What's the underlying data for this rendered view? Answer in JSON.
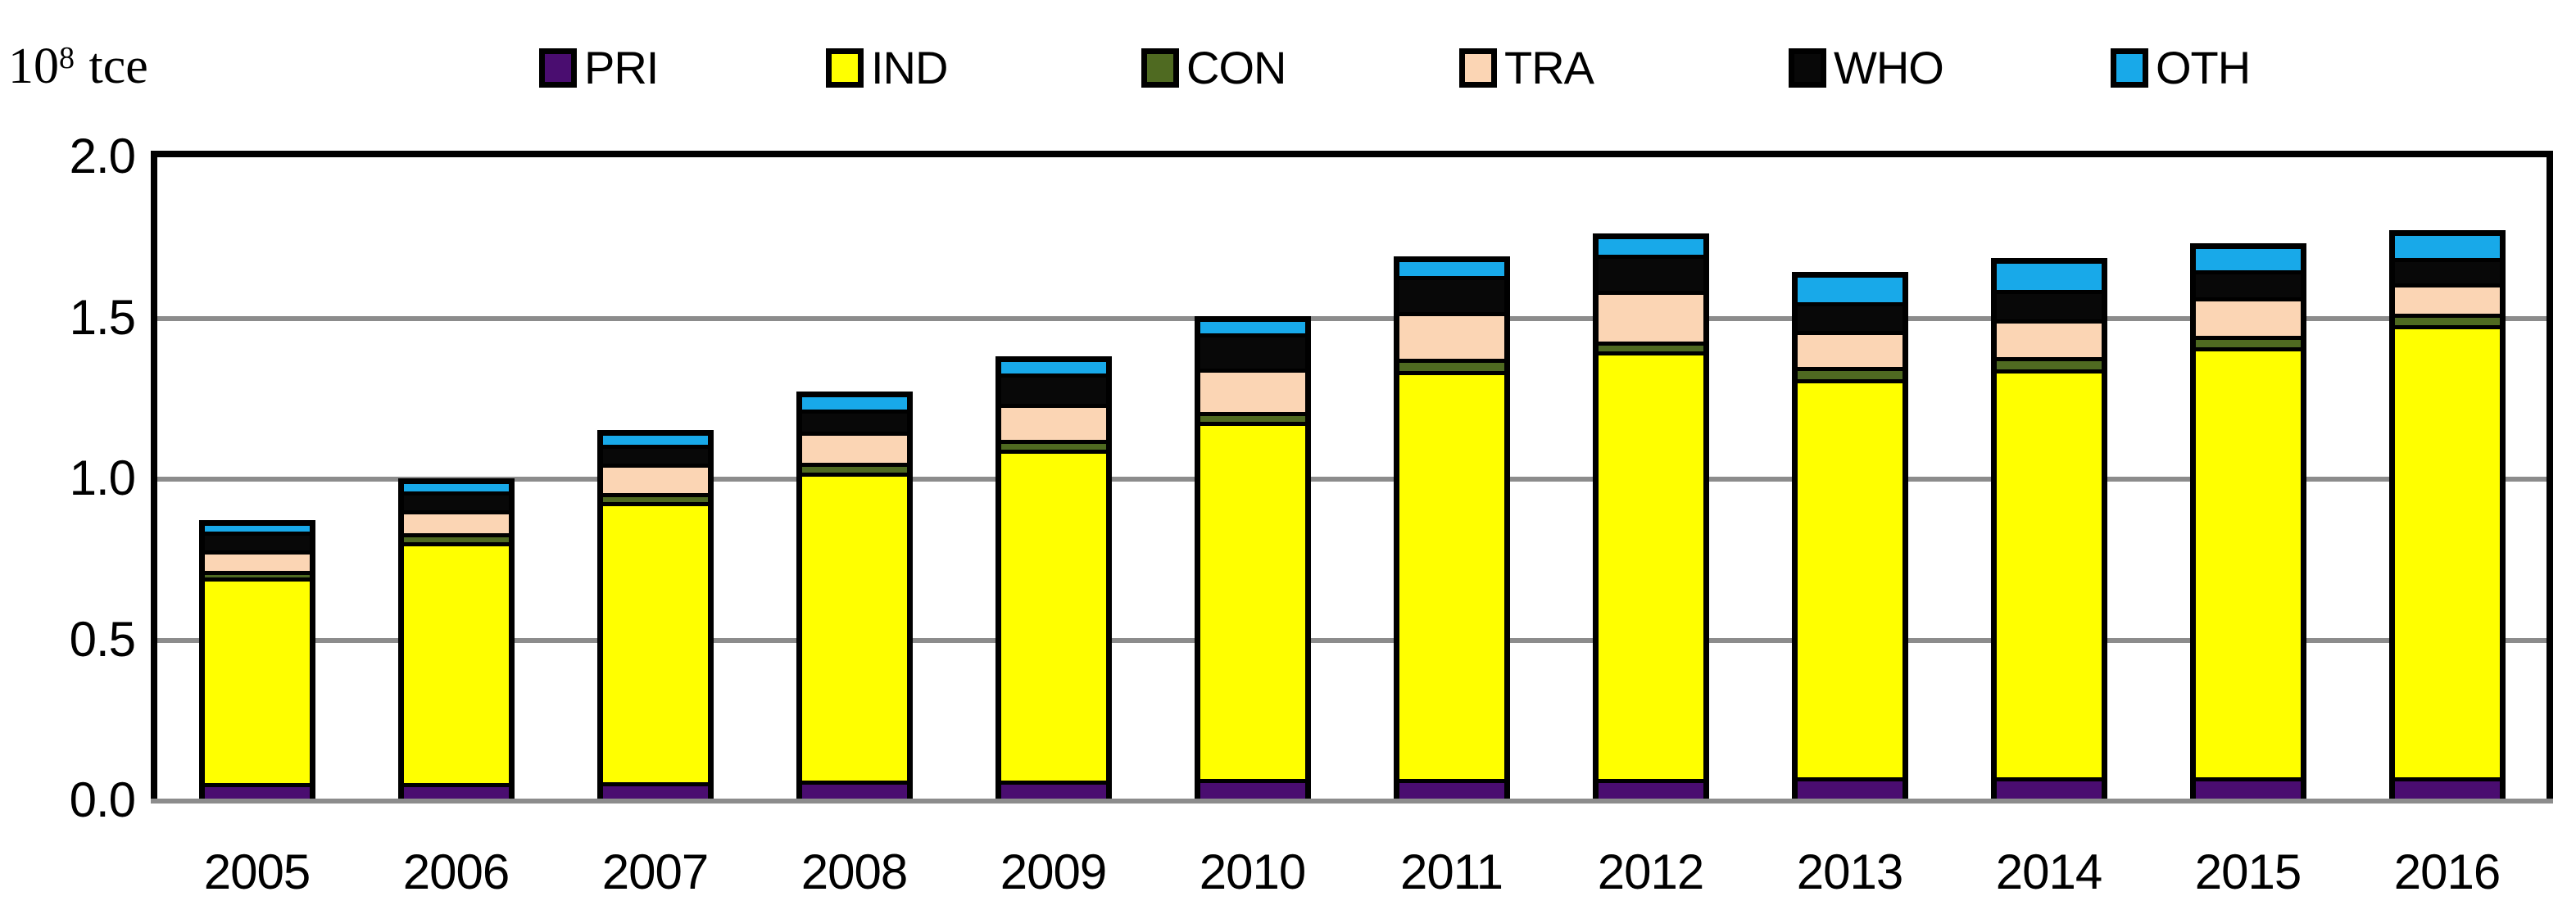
{
  "unit_label": {
    "mantissa": "10",
    "exponent": "8",
    "unit": " tce"
  },
  "colors": {
    "background": "#FFFFFF",
    "frame": "#000000",
    "grid": "#8C8C8C",
    "bar_border": "#000000"
  },
  "chart_data": {
    "type": "bar",
    "stacked": true,
    "title": "",
    "xlabel": "",
    "ylabel": "10^8 tce",
    "ylim": [
      0.0,
      2.0
    ],
    "yticks": [
      "0.0",
      "0.5",
      "1.0",
      "1.5",
      "2.0"
    ],
    "grid": true,
    "legend_position": "top",
    "categories": [
      "2005",
      "2006",
      "2007",
      "2008",
      "2009",
      "2010",
      "2011",
      "2012",
      "2013",
      "2014",
      "2015",
      "2016"
    ],
    "series": [
      {
        "name": "PRI",
        "color": "#4A0D70",
        "values": [
          0.04,
          0.04,
          0.04,
          0.045,
          0.045,
          0.05,
          0.05,
          0.05,
          0.055,
          0.055,
          0.055,
          0.055
        ]
      },
      {
        "name": "IND",
        "color": "#FFFF00",
        "values": [
          0.69,
          0.8,
          0.925,
          1.01,
          1.08,
          1.16,
          1.32,
          1.38,
          1.29,
          1.32,
          1.39,
          1.46
        ]
      },
      {
        "name": "CON",
        "color": "#4F6A21",
        "values": [
          0.01,
          0.015,
          0.015,
          0.02,
          0.02,
          0.02,
          0.025,
          0.02,
          0.025,
          0.025,
          0.025,
          0.025
        ]
      },
      {
        "name": "TRA",
        "color": "#FBD5B4",
        "values": [
          0.055,
          0.065,
          0.085,
          0.09,
          0.105,
          0.13,
          0.14,
          0.15,
          0.105,
          0.11,
          0.11,
          0.085
        ]
      },
      {
        "name": "WHO",
        "color": "#080808",
        "values": [
          0.05,
          0.05,
          0.05,
          0.06,
          0.085,
          0.1,
          0.105,
          0.105,
          0.08,
          0.085,
          0.075,
          0.07
        ]
      },
      {
        "name": "OTH",
        "color": "#18A9E9",
        "values": [
          0.02,
          0.025,
          0.03,
          0.04,
          0.04,
          0.04,
          0.045,
          0.05,
          0.08,
          0.085,
          0.07,
          0.07
        ]
      }
    ],
    "totals": [
      0.865,
      0.995,
      1.145,
      1.265,
      1.375,
      1.5,
      1.685,
      1.755,
      1.635,
      1.68,
      1.725,
      1.765
    ]
  }
}
